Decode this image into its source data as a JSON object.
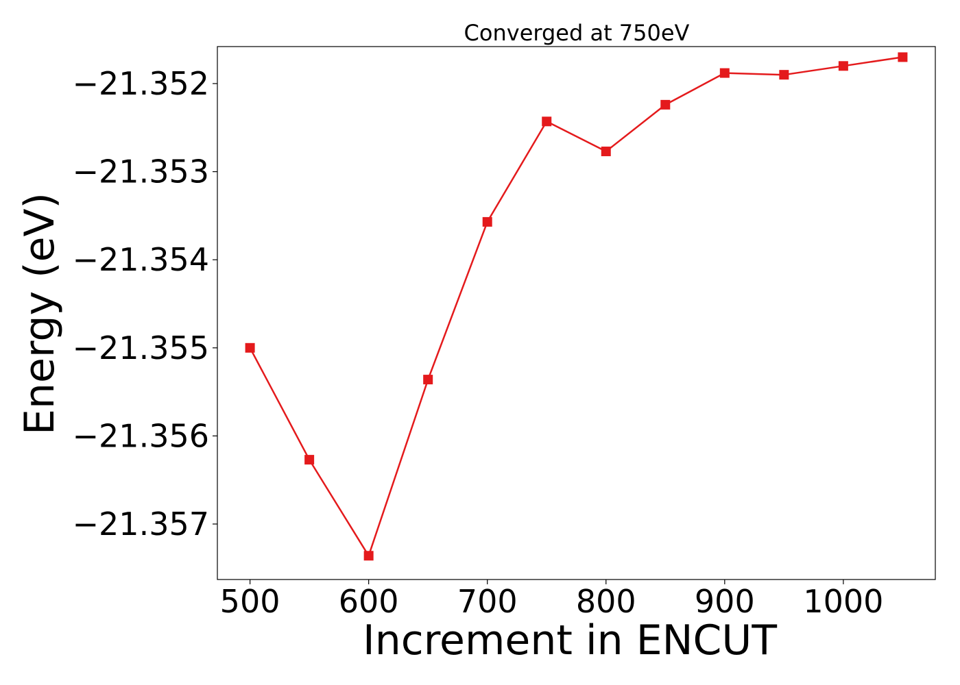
{
  "chart_data": {
    "type": "line",
    "title": "Converged at 750eV",
    "xlabel": "Increment in ENCUT",
    "ylabel": "Energy (eV)",
    "x": [
      500,
      550,
      600,
      650,
      700,
      750,
      800,
      850,
      900,
      950,
      1000,
      1050
    ],
    "series": [
      {
        "values": [
          -21.355,
          -21.35627,
          -21.35736,
          -21.35536,
          -21.35357,
          -21.35243,
          -21.35277,
          -21.35224,
          -21.35188,
          -21.3519,
          -21.3518,
          -21.3517
        ],
        "color": "#e41a1c",
        "marker": "square"
      }
    ],
    "xlim": [
      472.5,
      1077.5
    ],
    "ylim": [
      -21.35763,
      -21.35158
    ],
    "xticks": [
      500,
      600,
      700,
      800,
      900,
      1000
    ],
    "yticks": [
      -21.352,
      -21.353,
      -21.354,
      -21.355,
      -21.356,
      -21.357
    ],
    "xtick_labels": [
      "500",
      "600",
      "700",
      "800",
      "900",
      "1000"
    ],
    "ytick_labels": [
      "−21.352",
      "−21.353",
      "−21.354",
      "−21.355",
      "−21.356",
      "−21.357"
    ],
    "grid": false,
    "legend": "none"
  }
}
